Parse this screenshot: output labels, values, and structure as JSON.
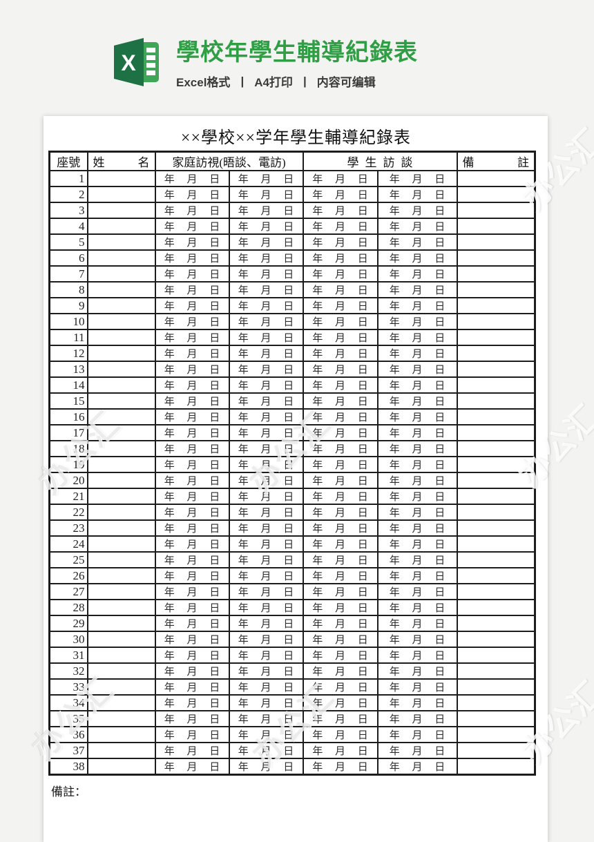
{
  "header": {
    "title": "學校年學生輔導紀錄表",
    "subtitle_parts": [
      "Excel格式",
      "A4打印",
      "内容可编辑"
    ],
    "separator": "|",
    "icon": "excel-logo-icon",
    "icon_letter": "X"
  },
  "colors": {
    "accent_green": "#2f9e44",
    "excel_dark_green": "#1e7145",
    "excel_light_green": "#3fa557",
    "page_background": "#f3f3f1",
    "table_line": "#1c1c1c"
  },
  "document": {
    "title": "××學校××学年學生輔導紀錄表",
    "header_row": {
      "seat": "座號",
      "name": [
        "姓",
        "名"
      ],
      "family_visit": "家庭訪視(晤談、電訪)",
      "student_interview": "學生訪談",
      "remark": [
        "備",
        "註"
      ]
    },
    "date_placeholder": "年 月 日",
    "row_numbers": [
      "1",
      "2",
      "3",
      "4",
      "5",
      "6",
      "7",
      "8",
      "9",
      "10",
      "11",
      "12",
      "13",
      "14",
      "15",
      "16",
      "17",
      "18",
      "19",
      "20",
      "21",
      "22",
      "23",
      "24",
      "25",
      "26",
      "27",
      "28",
      "29",
      "30",
      "31",
      "32",
      "33",
      "34",
      "35",
      "36",
      "37",
      "38"
    ],
    "footer_note": "備註："
  },
  "watermark": {
    "text": "办公汇"
  }
}
